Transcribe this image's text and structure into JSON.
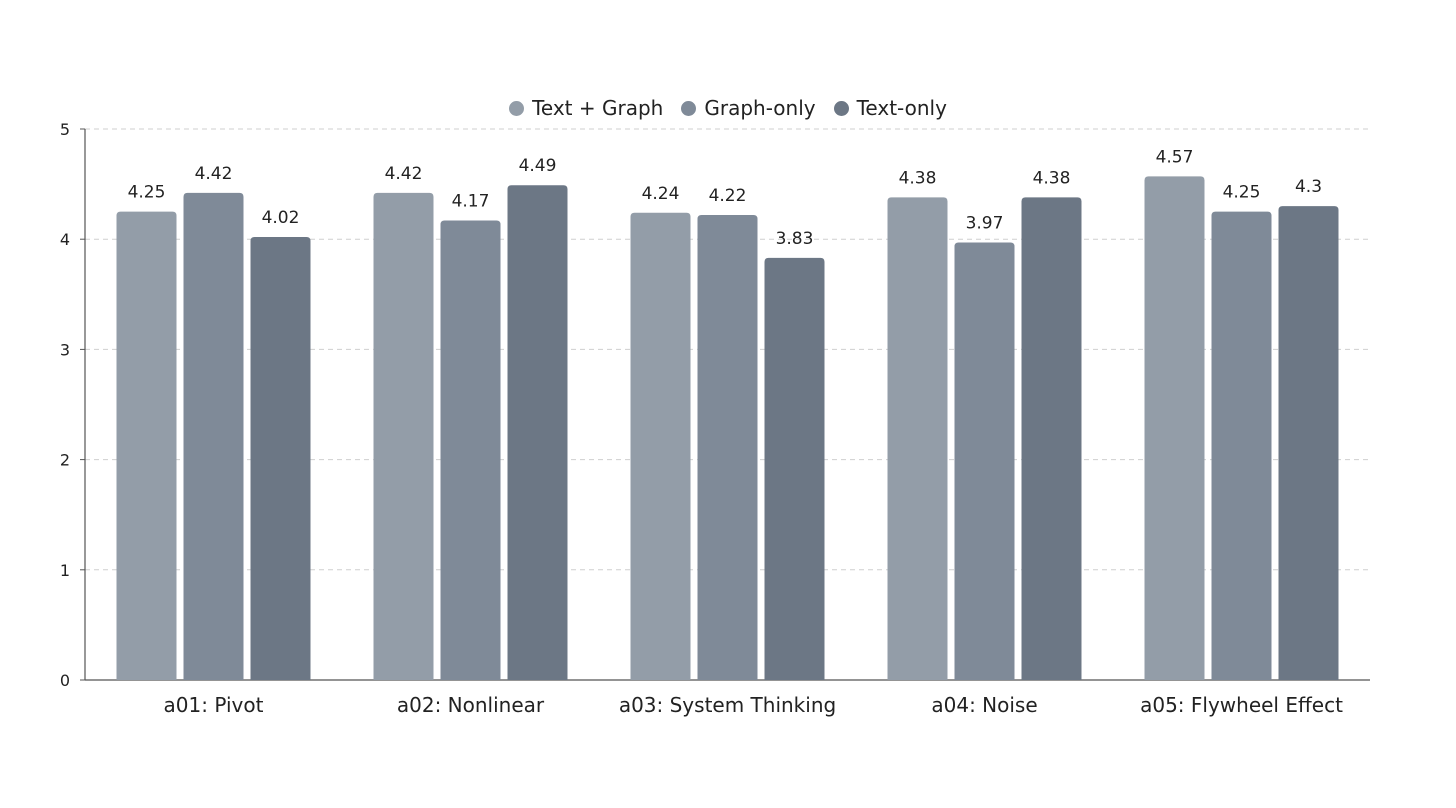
{
  "chart_data": {
    "type": "bar",
    "categories": [
      "a01: Pivot",
      "a02: Nonlinear",
      "a03: System Thinking",
      "a04: Noise",
      "a05: Flywheel Effect"
    ],
    "series": [
      {
        "name": "Text + Graph",
        "color": "#939da8",
        "values": [
          4.25,
          4.42,
          4.24,
          4.38,
          4.57
        ]
      },
      {
        "name": "Graph-only",
        "color": "#7f8a98",
        "values": [
          4.42,
          4.17,
          4.22,
          3.97,
          4.25
        ]
      },
      {
        "name": "Text-only",
        "color": "#6c7785",
        "values": [
          4.02,
          4.49,
          3.83,
          4.38,
          4.3
        ]
      }
    ],
    "ylim": [
      0,
      5
    ],
    "yticks": [
      "0",
      "1",
      "2",
      "3",
      "4",
      "5"
    ],
    "grid": true,
    "legend_position": "top-center",
    "data_labels": [
      [
        "4.25",
        "4.42",
        "4.24",
        "4.38",
        "4.57"
      ],
      [
        "4.42",
        "4.17",
        "4.22",
        "3.97",
        "4.25"
      ],
      [
        "4.02",
        "4.49",
        "3.83",
        "4.38",
        "4.3"
      ]
    ]
  }
}
